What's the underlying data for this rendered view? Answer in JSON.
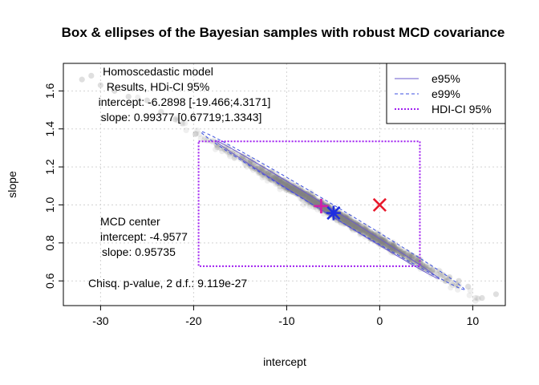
{
  "chart_data": {
    "type": "scatter",
    "title": "Box & ellipses of the Bayesian samples with robust MCD covariance",
    "xlabel": "intercept",
    "ylabel": "slope",
    "xlim": [
      -34,
      13.5
    ],
    "ylim": [
      0.47,
      1.745
    ],
    "xticks": [
      -30,
      -20,
      -10,
      0,
      10
    ],
    "yticks": [
      0.6,
      0.8,
      1.0,
      1.2,
      1.4,
      1.6
    ],
    "grid": true,
    "legend_position": "top-right",
    "legend": [
      {
        "label": "e95%",
        "color": "#6a5acd",
        "linestyle": "solid"
      },
      {
        "label": "e99%",
        "color": "#3b4fe0",
        "linestyle": "dashed"
      },
      {
        "label": "HDI-CI 95%",
        "color": "#a020f0",
        "linestyle": "dotted"
      }
    ],
    "samples": {
      "description": "Bayesian posterior samples",
      "center": [
        -4.9577,
        0.95735
      ],
      "slope_per_intercept": -0.0288,
      "color": "#808080",
      "outliers": [
        [
          -32,
          1.66
        ],
        [
          -31,
          1.68
        ],
        [
          -30,
          1.63
        ],
        [
          -28.5,
          1.6
        ],
        [
          -27,
          1.57
        ],
        [
          -25,
          1.55
        ],
        [
          -23.5,
          1.49
        ],
        [
          -22,
          1.45
        ],
        [
          8.5,
          0.6
        ],
        [
          9.5,
          0.57
        ],
        [
          11,
          0.51
        ],
        [
          12.5,
          0.53
        ],
        [
          7.5,
          0.62
        ]
      ]
    },
    "ellipses": [
      {
        "name": "e95%",
        "center": [
          -4.9577,
          0.95735
        ],
        "axis_a": [
          -17.7,
          1.34
        ],
        "axis_b": [
          6.4,
          0.61
        ],
        "half_minor_y": 0.017,
        "color": "#6a5acd",
        "style": "solid"
      },
      {
        "name": "e99%",
        "center": [
          -4.9577,
          0.95735
        ],
        "axis_a": [
          -19.2,
          1.385
        ],
        "axis_b": [
          9.1,
          0.555
        ],
        "half_minor_y": 0.028,
        "color": "#3b4fe0",
        "style": "dashed"
      }
    ],
    "hdi_box": {
      "x": [
        -19.466,
        4.3171
      ],
      "y": [
        0.67719,
        1.3343
      ],
      "color": "#a020f0"
    },
    "points": [
      {
        "name": "homoscedastic-estimate",
        "x": -6.2898,
        "y": 0.99377,
        "marker": "plus",
        "color": "#d21fa8"
      },
      {
        "name": "mcd-center",
        "x": -4.9577,
        "y": 0.95735,
        "marker": "asterisk",
        "color": "#1f2ee0"
      },
      {
        "name": "reference-point",
        "x": 0,
        "y": 1.0,
        "marker": "cross",
        "color": "#e8192c"
      }
    ],
    "annotations": {
      "homoscedastic": [
        "Homoscedastic model",
        "Results, HDi-CI 95%",
        "intercept: -6.2898 [-19.466;4.3171]",
        "slope: 0.99377 [0.67719;1.3343]"
      ],
      "mcd": [
        "MCD center",
        "intercept: -4.9577",
        "slope: 0.95735"
      ],
      "chisq": "Chisq. p-value, 2 d.f.:  9.119e-27"
    }
  }
}
